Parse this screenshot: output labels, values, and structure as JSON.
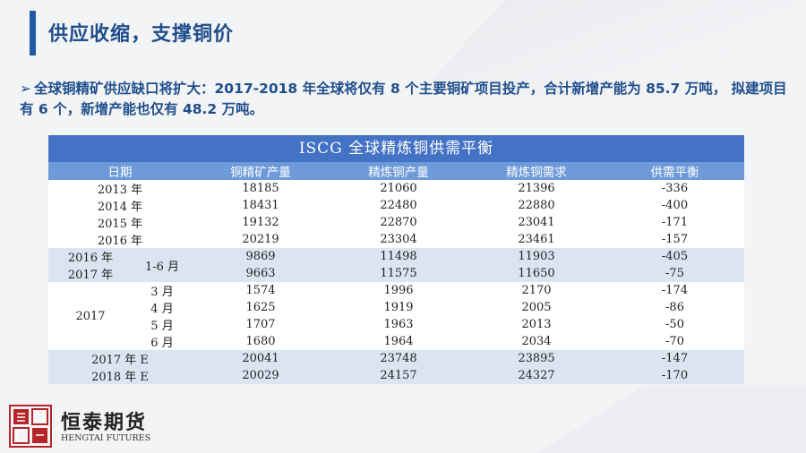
{
  "title": "供应收缩，支撑铜价",
  "paragraph": "全球铜精矿供应缺口将扩大：2017-2018 年全球将仅有 8 个主要铜矿项目投产，合计新增产能为 85.7 万吨， 拟建项目有 6 个，新增产能也仅有 48.2 万吨。",
  "table": {
    "title": "ISCG 全球精炼铜供需平衡",
    "headers": [
      "日期",
      "铜精矿产量",
      "精炼铜产量",
      "精炼铜需求",
      "供需平衡"
    ],
    "rows": [
      {
        "date": "2013 年",
        "c1": "18185",
        "c2": "21060",
        "c3": "21396",
        "c4": "-336"
      },
      {
        "date": "2014 年",
        "c1": "18431",
        "c2": "22480",
        "c3": "22880",
        "c4": "-400"
      },
      {
        "date": "2015 年",
        "c1": "19132",
        "c2": "22870",
        "c3": "23041",
        "c4": "-171"
      },
      {
        "date": "2016 年",
        "c1": "20219",
        "c2": "23304",
        "c3": "23461",
        "c4": "-157"
      },
      {
        "date": "2016 年",
        "c1": "9869",
        "c2": "11498",
        "c3": "11903",
        "c4": "-405"
      },
      {
        "date": "2017 年",
        "c1": "9663",
        "c2": "11575",
        "c3": "11650",
        "c4": "-75"
      },
      {
        "date": "3 月",
        "c1": "1574",
        "c2": "1996",
        "c3": "2170",
        "c4": "-174"
      },
      {
        "date": "4 月",
        "c1": "1625",
        "c2": "1919",
        "c3": "2005",
        "c4": "-86"
      },
      {
        "date": "5 月",
        "c1": "1707",
        "c2": "1963",
        "c3": "2013",
        "c4": "-50"
      },
      {
        "date": "6 月",
        "c1": "1680",
        "c2": "1964",
        "c3": "2034",
        "c4": "-70"
      },
      {
        "date": "2017 年 E",
        "c1": "20041",
        "c2": "23748",
        "c3": "23895",
        "c4": "-147"
      },
      {
        "date": "2018 年 E",
        "c1": "20029",
        "c2": "24157",
        "c3": "24327",
        "c4": "-170"
      }
    ],
    "half_year_label": "1-6 月",
    "year_2017_label": "2017"
  },
  "logo": {
    "seal_text": "證券 恒泰",
    "cn": "恒泰期货",
    "en": "HENGTAI FUTURES"
  },
  "colors": {
    "accent": "#1f5aa3",
    "table_header": "#4472c4",
    "table_band": "#dbe5f1"
  }
}
